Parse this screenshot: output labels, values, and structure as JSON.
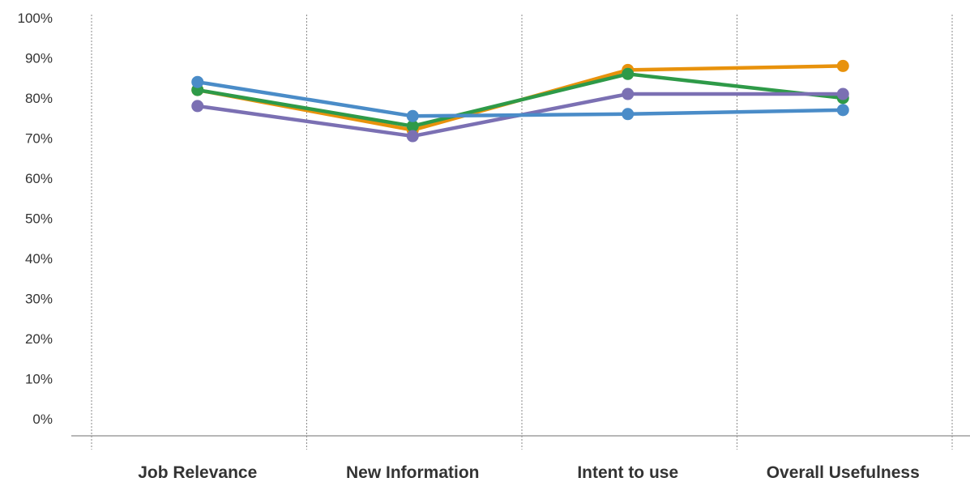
{
  "chart_data": {
    "type": "line",
    "categories": [
      "Job Relevance",
      "New Information",
      "Intent to use",
      "Overall Usefulness"
    ],
    "ylim": [
      0,
      100
    ],
    "ytick_step": 10,
    "ytick_suffix": "%",
    "xlabel": "",
    "ylabel": "",
    "title": "",
    "grid": "vertical-dotted",
    "legend": "none",
    "series": [
      {
        "color": "#E8920C",
        "values": [
          82,
          72,
          87,
          88
        ]
      },
      {
        "color": "#2E9A48",
        "values": [
          82,
          73,
          86,
          80
        ]
      },
      {
        "color": "#7B70B3",
        "values": [
          78,
          70.5,
          81,
          81
        ]
      },
      {
        "color": "#4A8CC8",
        "values": [
          84,
          75.5,
          76,
          77
        ]
      }
    ]
  }
}
